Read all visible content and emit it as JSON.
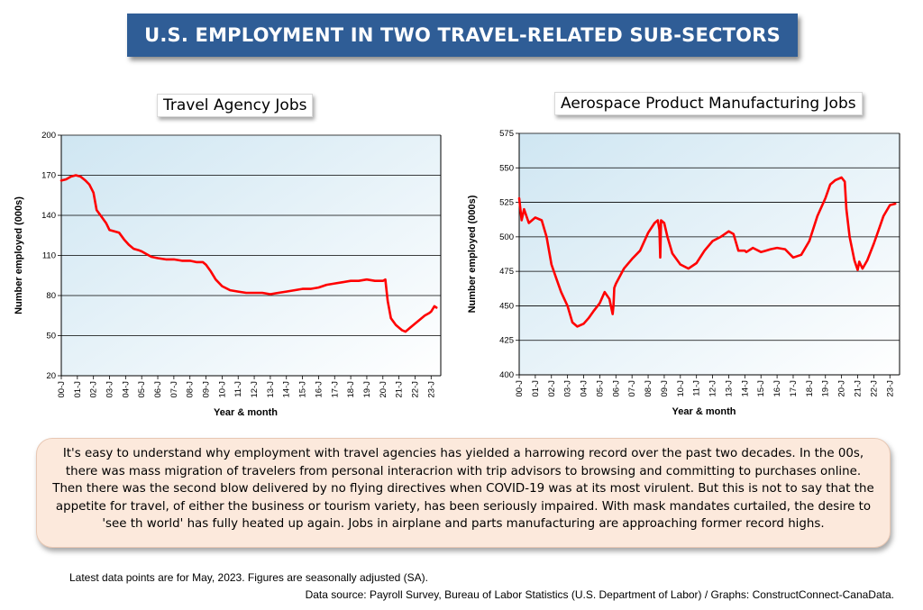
{
  "banner": {
    "title": "U.S. EMPLOYMENT IN TWO TRAVEL-RELATED SUB-SECTORS"
  },
  "colors": {
    "banner": "#2f5d96",
    "line": "#ff0000",
    "note_bg": "#fce9dc",
    "plot_bg_left": "#d6eaf4"
  },
  "chart_data": [
    {
      "type": "line",
      "title": "Travel Agency Jobs",
      "xlabel": "Year & month",
      "ylabel": "Number employed (000s)",
      "ylim": [
        20,
        200
      ],
      "yticks": [
        20,
        50,
        80,
        110,
        140,
        170,
        200
      ],
      "xticks": [
        "00-J",
        "01-J",
        "02-J",
        "03-J",
        "04-J",
        "05-J",
        "06-J",
        "07-J",
        "08-J",
        "09-J",
        "10-J",
        "11-J",
        "12-J",
        "13-J",
        "14-J",
        "15-J",
        "16-J",
        "17-J",
        "18-J",
        "19-J",
        "20-J",
        "21-J",
        "22-J",
        "23-J"
      ],
      "grid": true,
      "series": [
        {
          "x": [
            2000.0,
            2000.3,
            2000.6,
            2000.9,
            2001.2,
            2001.5,
            2001.75,
            2002.0,
            2002.2,
            2002.5,
            2002.8,
            2003.0,
            2003.3,
            2003.6,
            2003.9,
            2004.2,
            2004.5,
            2004.8,
            2005.0,
            2005.3,
            2005.6,
            2006.0,
            2006.5,
            2007.0,
            2007.5,
            2008.0,
            2008.4,
            2008.8,
            2009.0,
            2009.3,
            2009.6,
            2010.0,
            2010.5,
            2011.0,
            2011.5,
            2012.0,
            2012.5,
            2013.0,
            2013.5,
            2014.0,
            2014.5,
            2015.0,
            2015.5,
            2016.0,
            2016.5,
            2017.0,
            2017.5,
            2018.0,
            2018.5,
            2019.0,
            2019.5,
            2020.0,
            2020.15,
            2020.3,
            2020.5,
            2020.8,
            2021.0,
            2021.2,
            2021.4,
            2021.7,
            2022.0,
            2022.3,
            2022.6,
            2022.9,
            2023.0,
            2023.2,
            2023.33
          ],
          "y": [
            166,
            167,
            169,
            170,
            169,
            166,
            163,
            157,
            144,
            139,
            134,
            129,
            128,
            127,
            122,
            118,
            115,
            114,
            113,
            111,
            109,
            108,
            107,
            107,
            106,
            106,
            105,
            105,
            103,
            98,
            92,
            87,
            84,
            83,
            82,
            82,
            82,
            81,
            82,
            83,
            84,
            85,
            85,
            86,
            88,
            89,
            90,
            91,
            91,
            92,
            91,
            91,
            92,
            76,
            63,
            58,
            56,
            54,
            53,
            56,
            59,
            62,
            65,
            67,
            68,
            72,
            71
          ]
        }
      ]
    },
    {
      "type": "line",
      "title": "Aerospace Product Manufacturing Jobs",
      "xlabel": "Year & month",
      "ylabel": "Number employed (000s)",
      "ylim": [
        400,
        575
      ],
      "yticks": [
        400,
        425,
        450,
        475,
        500,
        525,
        550,
        575
      ],
      "xticks": [
        "00-J",
        "01-J",
        "02-J",
        "03-J",
        "04-J",
        "05-J",
        "06-J",
        "07-J",
        "08-J",
        "09-J",
        "10-J",
        "11-J",
        "12-J",
        "13-J",
        "14-J",
        "15-J",
        "16-J",
        "17-J",
        "18-J",
        "19-J",
        "20-J",
        "21-J",
        "22-J",
        "23-J"
      ],
      "grid": true,
      "series": [
        {
          "x": [
            2000.0,
            2000.15,
            2000.3,
            2000.6,
            2001.0,
            2001.4,
            2001.7,
            2002.0,
            2002.3,
            2002.6,
            2003.0,
            2003.3,
            2003.6,
            2004.0,
            2004.3,
            2004.6,
            2005.0,
            2005.3,
            2005.6,
            2005.8,
            2005.85,
            2005.9,
            2006.0,
            2006.5,
            2007.0,
            2007.5,
            2008.0,
            2008.4,
            2008.6,
            2008.7,
            2008.75,
            2008.8,
            2009.0,
            2009.2,
            2009.5,
            2010.0,
            2010.5,
            2011.0,
            2011.5,
            2012.0,
            2012.5,
            2013.0,
            2013.3,
            2013.6,
            2014.0,
            2014.1,
            2014.5,
            2015.0,
            2015.3,
            2015.6,
            2016.0,
            2016.5,
            2017.0,
            2017.5,
            2018.0,
            2018.5,
            2019.0,
            2019.3,
            2019.6,
            2020.0,
            2020.2,
            2020.3,
            2020.5,
            2020.8,
            2021.0,
            2021.1,
            2021.3,
            2021.6,
            2022.0,
            2022.3,
            2022.6,
            2023.0,
            2023.33
          ],
          "y": [
            528,
            512,
            520,
            510,
            514,
            512,
            500,
            480,
            470,
            460,
            450,
            438,
            435,
            437,
            441,
            446,
            452,
            460,
            455,
            444,
            450,
            463,
            466,
            477,
            484,
            490,
            503,
            510,
            512,
            505,
            485,
            512,
            510,
            500,
            488,
            480,
            477,
            481,
            490,
            497,
            500,
            504,
            502,
            490,
            490,
            489,
            492,
            489,
            490,
            491,
            492,
            491,
            485,
            487,
            497,
            515,
            528,
            538,
            541,
            543,
            540,
            520,
            500,
            483,
            476,
            482,
            477,
            483,
            495,
            505,
            515,
            523,
            524
          ]
        }
      ]
    }
  ],
  "note": {
    "text": "It's easy to understand why employment with travel agencies has yielded a harrowing record over the past two decades. In the 00s, there was mass migration of travelers from personal interacrion with trip advisors to browsing and committing to purchases online. Then there was the second blow delivered by no flying directives when COVID-19 was at its most virulent. But this is not to say that the appetite for travel, of either the business or tourism variety, has been seriously impaired. With mask mandates curtailed, the desire to 'see th world' has fully heated up again. Jobs in airplane and parts manufacturing are approaching former record highs."
  },
  "footnotes": {
    "latest": "Latest data points are for May, 2023. Figures are seasonally adjusted (SA).",
    "source": "Data source: Payroll Survey, Bureau of Labor Statistics (U.S. Department of Labor) / Graphs: ConstructConnect-CanaData."
  }
}
